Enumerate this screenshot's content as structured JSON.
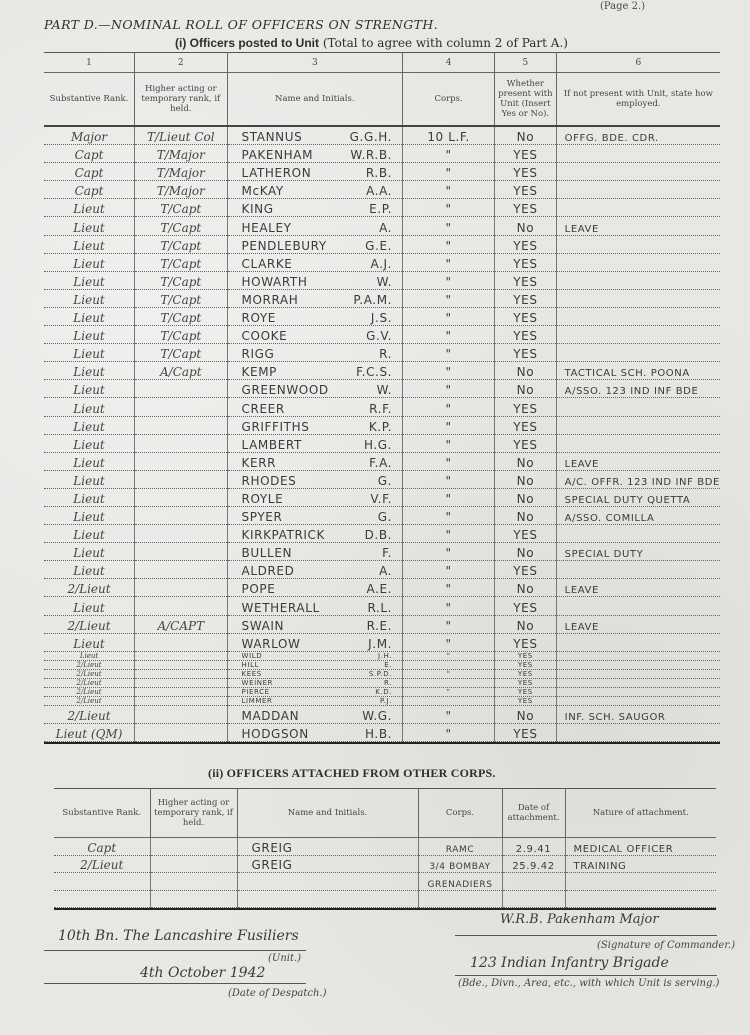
{
  "page_number": "(Page 2.)",
  "part_title": "PART D.—NOMINAL ROLL OF OFFICERS ON STRENGTH.",
  "section1": {
    "title": "(i) Officers posted to Unit",
    "note": "(Total to agree with column 2 of Part A.)",
    "column_numbers": [
      "1",
      "2",
      "3",
      "4",
      "5",
      "6"
    ],
    "columns": [
      "Substantive Rank.",
      "Higher acting or temporary rank, if held.",
      "Name and Initials.",
      "Corps.",
      "Whether present with Unit (Insert Yes or No).",
      "If not present with Unit, state how employed."
    ],
    "rows": [
      {
        "rank": "Major",
        "higher": "T/Lieut Col",
        "name": "STANNUS",
        "initials": "G.G.H.",
        "corps": "10 L.F.",
        "present": "No",
        "employed": "OFFG. BDE. CDR."
      },
      {
        "rank": "Capt",
        "higher": "T/Major",
        "name": "PAKENHAM",
        "initials": "W.R.B.",
        "corps": "\"",
        "present": "YES",
        "employed": ""
      },
      {
        "rank": "Capt",
        "higher": "T/Major",
        "name": "LATHERON",
        "initials": "R.B.",
        "corps": "\"",
        "present": "YES",
        "employed": ""
      },
      {
        "rank": "Capt",
        "higher": "T/Major",
        "name": "McKAY",
        "initials": "A.A.",
        "corps": "\"",
        "present": "YES",
        "employed": ""
      },
      {
        "rank": "Lieut",
        "higher": "T/Capt",
        "name": "KING",
        "initials": "E.P.",
        "corps": "\"",
        "present": "YES",
        "employed": ""
      },
      {
        "rank": "Lieut",
        "higher": "T/Capt",
        "name": "HEALEY",
        "initials": "A.",
        "corps": "\"",
        "present": "No",
        "employed": "LEAVE"
      },
      {
        "rank": "Lieut",
        "higher": "T/Capt",
        "name": "PENDLEBURY",
        "initials": "G.E.",
        "corps": "\"",
        "present": "YES",
        "employed": ""
      },
      {
        "rank": "Lieut",
        "higher": "T/Capt",
        "name": "CLARKE",
        "initials": "A.J.",
        "corps": "\"",
        "present": "YES",
        "employed": ""
      },
      {
        "rank": "Lieut",
        "higher": "T/Capt",
        "name": "HOWARTH",
        "initials": "W.",
        "corps": "\"",
        "present": "YES",
        "employed": ""
      },
      {
        "rank": "Lieut",
        "higher": "T/Capt",
        "name": "MORRAH",
        "initials": "P.A.M.",
        "corps": "\"",
        "present": "YES",
        "employed": ""
      },
      {
        "rank": "Lieut",
        "higher": "T/Capt",
        "name": "ROYE",
        "initials": "J.S.",
        "corps": "\"",
        "present": "YES",
        "employed": ""
      },
      {
        "rank": "Lieut",
        "higher": "T/Capt",
        "name": "COOKE",
        "initials": "G.V.",
        "corps": "\"",
        "present": "YES",
        "employed": ""
      },
      {
        "rank": "Lieut",
        "higher": "T/Capt",
        "name": "RIGG",
        "initials": "R.",
        "corps": "\"",
        "present": "YES",
        "employed": ""
      },
      {
        "rank": "Lieut",
        "higher": "A/Capt",
        "name": "KEMP",
        "initials": "F.C.S.",
        "corps": "\"",
        "present": "No",
        "employed": "TACTICAL SCH. POONA"
      },
      {
        "rank": "Lieut",
        "higher": "",
        "name": "GREENWOOD",
        "initials": "W.",
        "corps": "\"",
        "present": "No",
        "employed": "A/SSO. 123 IND INF BDE"
      },
      {
        "rank": "Lieut",
        "higher": "",
        "name": "CREER",
        "initials": "R.F.",
        "corps": "\"",
        "present": "YES",
        "employed": ""
      },
      {
        "rank": "Lieut",
        "higher": "",
        "name": "GRIFFITHS",
        "initials": "K.P.",
        "corps": "\"",
        "present": "YES",
        "employed": ""
      },
      {
        "rank": "Lieut",
        "higher": "",
        "name": "LAMBERT",
        "initials": "H.G.",
        "corps": "\"",
        "present": "YES",
        "employed": ""
      },
      {
        "rank": "Lieut",
        "higher": "",
        "name": "KERR",
        "initials": "F.A.",
        "corps": "\"",
        "present": "No",
        "employed": "LEAVE"
      },
      {
        "rank": "Lieut",
        "higher": "",
        "name": "RHODES",
        "initials": "G.",
        "corps": "\"",
        "present": "No",
        "employed": "A/C. OFFR. 123 IND INF BDE"
      },
      {
        "rank": "Lieut",
        "higher": "",
        "name": "ROYLE",
        "initials": "V.F.",
        "corps": "\"",
        "present": "No",
        "employed": "SPECIAL DUTY QUETTA"
      },
      {
        "rank": "Lieut",
        "higher": "",
        "name": "SPYER",
        "initials": "G.",
        "corps": "\"",
        "present": "No",
        "employed": "A/SSO. COMILLA"
      },
      {
        "rank": "Lieut",
        "higher": "",
        "name": "KIRKPATRICK",
        "initials": "D.B.",
        "corps": "\"",
        "present": "YES",
        "employed": ""
      },
      {
        "rank": "Lieut",
        "higher": "",
        "name": "BULLEN",
        "initials": "F.",
        "corps": "\"",
        "present": "No",
        "employed": "SPECIAL DUTY"
      },
      {
        "rank": "Lieut",
        "higher": "",
        "name": "ALDRED",
        "initials": "A.",
        "corps": "\"",
        "present": "YES",
        "employed": ""
      },
      {
        "rank": "2/Lieut",
        "higher": "",
        "name": "POPE",
        "initials": "A.E.",
        "corps": "\"",
        "present": "No",
        "employed": "LEAVE"
      },
      {
        "rank": "Lieut",
        "higher": "",
        "name": "WETHERALL",
        "initials": "R.L.",
        "corps": "\"",
        "present": "YES",
        "employed": ""
      },
      {
        "rank": "2/Lieut",
        "higher": "A/CAPT",
        "name": "SWAIN",
        "initials": "R.E.",
        "corps": "\"",
        "present": "No",
        "employed": "LEAVE"
      },
      {
        "rank": "Lieut",
        "higher": "",
        "name": "WARLOW",
        "initials": "J.M.",
        "corps": "\"",
        "present": "YES",
        "employed": ""
      },
      {
        "rank": "Lieut",
        "higher": "",
        "name": "WILD",
        "initials": "J.H.",
        "corps": "\"",
        "present": "YES",
        "employed": ""
      },
      {
        "rank": "2/Lieut",
        "higher": "",
        "name": "HILL",
        "initials": "E.",
        "corps": "",
        "present": "YES",
        "employed": ""
      },
      {
        "rank": "2/Lieut",
        "higher": "",
        "name": "KEES",
        "initials": "S.P.D.",
        "corps": "\"",
        "present": "YES",
        "employed": ""
      },
      {
        "rank": "2/Lieut",
        "higher": "",
        "name": "WEINER",
        "initials": "R.",
        "corps": "",
        "present": "YES",
        "employed": ""
      },
      {
        "rank": "2/Lieut",
        "higher": "",
        "name": "PIERCE",
        "initials": "K.D.",
        "corps": "\"",
        "present": "YES",
        "employed": ""
      },
      {
        "rank": "2/Lieut",
        "higher": "",
        "name": "LIMMER",
        "initials": "P.J.",
        "corps": "",
        "present": "YES",
        "employed": ""
      },
      {
        "rank": "2/Lieut",
        "higher": "",
        "name": "MADDAN",
        "initials": "W.G.",
        "corps": "\"",
        "present": "No",
        "employed": "INF. SCH. SAUGOR"
      },
      {
        "rank": "Lieut (QM)",
        "higher": "",
        "name": "HODGSON",
        "initials": "H.B.",
        "corps": "\"",
        "present": "YES",
        "employed": ""
      }
    ]
  },
  "section2": {
    "title": "(ii) OFFICERS ATTACHED FROM OTHER CORPS.",
    "columns": [
      "Substantive Rank.",
      "Higher acting or temporary rank, if held.",
      "Name and Initials.",
      "Corps.",
      "Date of attachment.",
      "Nature of attachment."
    ],
    "rows": [
      {
        "rank": "Capt",
        "higher": "",
        "name": "GREIG",
        "corps": "RAMC",
        "date": "2.9.41",
        "nature": "MEDICAL OFFICER"
      },
      {
        "rank": "2/Lieut",
        "higher": "",
        "name": "GREIG",
        "corps": "3/4 BOMBAY",
        "date": "25.9.42",
        "nature": "TRAINING"
      },
      {
        "rank": "",
        "higher": "",
        "name": "",
        "corps": "GRENADIERS",
        "date": "",
        "nature": ""
      },
      {
        "rank": "",
        "higher": "",
        "name": "",
        "corps": "",
        "date": "",
        "nature": ""
      }
    ]
  },
  "footer": {
    "unit_value": "10th Bn. The Lancashire Fusiliers",
    "unit_label": "(Unit.)",
    "date_value": "4th October 1942",
    "date_label": "(Date of Despatch.)",
    "signature_value": "W.R.B. Pakenham Major",
    "signature_label": "(Signature of Commander.)",
    "formation_value": "123 Indian Infantry Brigade",
    "formation_label": "(Bde., Divn., Area, etc., with which Unit is serving.)"
  }
}
